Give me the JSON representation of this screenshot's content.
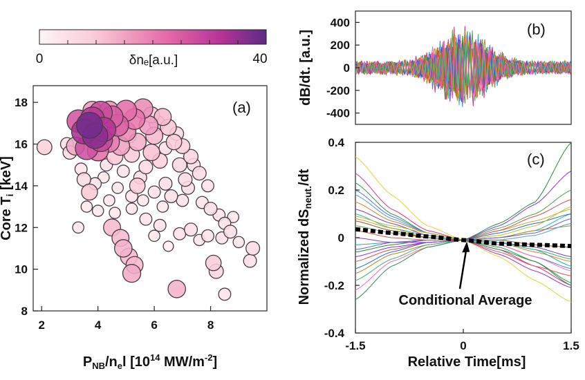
{
  "figure": {
    "colorbar": {
      "label": "δnₑ[a.u.]",
      "min_label": "0",
      "max_label": "40",
      "range": [
        0,
        40
      ],
      "colors": [
        "#fff5f6",
        "#f9c9d6",
        "#e66da8",
        "#b53496",
        "#5c2a86"
      ]
    }
  },
  "chart_data": [
    {
      "panel_label": "(a)",
      "type": "scatter",
      "xlabel": "P",
      "xlabel_sub": "NB",
      "xlabel_rest": "/n",
      "xlabel_sub2": "e",
      "xlabel_end": "l [10",
      "xlabel_sup": "14",
      "xlabel_tail": " MW/m",
      "xlabel_sup2": "-2",
      "xlabel_close": "]",
      "ylabel": "Core T",
      "ylabel_sub": "i",
      "ylabel_tail": " [keV]",
      "xlim": [
        1.7,
        10.0
      ],
      "ylim": [
        8.0,
        18.8
      ],
      "xticks": [
        "2",
        "4",
        "6",
        "8"
      ],
      "yticks": [
        "8",
        "10",
        "12",
        "14",
        "16",
        "18"
      ],
      "marker_size_and_color": "δn_e [a.u.]",
      "points": [
        {
          "x": 3.7,
          "y": 16.9,
          "c": 38
        },
        {
          "x": 3.9,
          "y": 16.4,
          "c": 36
        },
        {
          "x": 3.5,
          "y": 16.6,
          "c": 33
        },
        {
          "x": 4.2,
          "y": 16.7,
          "c": 32
        },
        {
          "x": 3.8,
          "y": 17.2,
          "c": 31
        },
        {
          "x": 4.1,
          "y": 17.5,
          "c": 28
        },
        {
          "x": 3.3,
          "y": 17.1,
          "c": 26
        },
        {
          "x": 4.5,
          "y": 17.3,
          "c": 25
        },
        {
          "x": 4.7,
          "y": 16.9,
          "c": 24
        },
        {
          "x": 3.6,
          "y": 15.8,
          "c": 27
        },
        {
          "x": 4.0,
          "y": 15.7,
          "c": 22
        },
        {
          "x": 5.0,
          "y": 17.6,
          "c": 22
        },
        {
          "x": 5.3,
          "y": 17.2,
          "c": 21
        },
        {
          "x": 5.6,
          "y": 17.7,
          "c": 18
        },
        {
          "x": 4.4,
          "y": 16.1,
          "c": 20
        },
        {
          "x": 5.0,
          "y": 16.6,
          "c": 18
        },
        {
          "x": 5.8,
          "y": 16.9,
          "c": 16
        },
        {
          "x": 4.8,
          "y": 15.9,
          "c": 15
        },
        {
          "x": 3.2,
          "y": 15.9,
          "c": 14
        },
        {
          "x": 5.4,
          "y": 16.1,
          "c": 13
        },
        {
          "x": 6.0,
          "y": 16.4,
          "c": 12
        },
        {
          "x": 6.3,
          "y": 17.3,
          "c": 12
        },
        {
          "x": 5.9,
          "y": 15.6,
          "c": 11
        },
        {
          "x": 6.5,
          "y": 16.8,
          "c": 10
        },
        {
          "x": 4.6,
          "y": 15.4,
          "c": 10
        },
        {
          "x": 6.7,
          "y": 16.1,
          "c": 9
        },
        {
          "x": 5.2,
          "y": 15.5,
          "c": 9
        },
        {
          "x": 6.2,
          "y": 15.2,
          "c": 8
        },
        {
          "x": 7.0,
          "y": 15.9,
          "c": 8
        },
        {
          "x": 6.9,
          "y": 15.0,
          "c": 7
        },
        {
          "x": 7.3,
          "y": 15.4,
          "c": 7
        },
        {
          "x": 7.6,
          "y": 14.6,
          "c": 6
        },
        {
          "x": 7.1,
          "y": 14.3,
          "c": 6
        },
        {
          "x": 5.7,
          "y": 14.9,
          "c": 6
        },
        {
          "x": 6.4,
          "y": 14.1,
          "c": 5
        },
        {
          "x": 5.5,
          "y": 14.4,
          "c": 5
        },
        {
          "x": 4.9,
          "y": 14.7,
          "c": 4
        },
        {
          "x": 4.3,
          "y": 15.0,
          "c": 4
        },
        {
          "x": 3.4,
          "y": 14.8,
          "c": 4
        },
        {
          "x": 3.0,
          "y": 15.6,
          "c": 6
        },
        {
          "x": 2.9,
          "y": 16.0,
          "c": 5
        },
        {
          "x": 2.1,
          "y": 15.85,
          "c": 8
        },
        {
          "x": 3.5,
          "y": 14.3,
          "c": 6
        },
        {
          "x": 3.7,
          "y": 13.7,
          "c": 10
        },
        {
          "x": 3.9,
          "y": 14.1,
          "c": 4
        },
        {
          "x": 4.2,
          "y": 14.4,
          "c": 3
        },
        {
          "x": 4.7,
          "y": 13.9,
          "c": 3
        },
        {
          "x": 5.2,
          "y": 13.5,
          "c": 4
        },
        {
          "x": 5.4,
          "y": 14.0,
          "c": 9
        },
        {
          "x": 6.0,
          "y": 13.7,
          "c": 4
        },
        {
          "x": 6.6,
          "y": 13.5,
          "c": 5
        },
        {
          "x": 7.2,
          "y": 13.9,
          "c": 5
        },
        {
          "x": 7.7,
          "y": 13.2,
          "c": 4
        },
        {
          "x": 8.0,
          "y": 12.9,
          "c": 5
        },
        {
          "x": 8.3,
          "y": 12.6,
          "c": 4
        },
        {
          "x": 8.5,
          "y": 12.2,
          "c": 4
        },
        {
          "x": 8.7,
          "y": 11.8,
          "c": 5
        },
        {
          "x": 8.4,
          "y": 11.5,
          "c": 4
        },
        {
          "x": 7.9,
          "y": 11.6,
          "c": 4
        },
        {
          "x": 7.3,
          "y": 11.9,
          "c": 5
        },
        {
          "x": 6.9,
          "y": 11.7,
          "c": 4
        },
        {
          "x": 6.2,
          "y": 12.1,
          "c": 4
        },
        {
          "x": 5.7,
          "y": 12.4,
          "c": 4
        },
        {
          "x": 5.2,
          "y": 12.9,
          "c": 3
        },
        {
          "x": 4.6,
          "y": 12.7,
          "c": 3
        },
        {
          "x": 3.3,
          "y": 12.0,
          "c": 3
        },
        {
          "x": 4.0,
          "y": 12.8,
          "c": 3
        },
        {
          "x": 4.5,
          "y": 12.0,
          "c": 12
        },
        {
          "x": 4.8,
          "y": 11.5,
          "c": 12
        },
        {
          "x": 4.9,
          "y": 11.0,
          "c": 13
        },
        {
          "x": 5.1,
          "y": 10.6,
          "c": 12
        },
        {
          "x": 5.3,
          "y": 10.2,
          "c": 12
        },
        {
          "x": 5.2,
          "y": 9.8,
          "c": 14
        },
        {
          "x": 6.8,
          "y": 9.05,
          "c": 13
        },
        {
          "x": 8.1,
          "y": 10.3,
          "c": 9
        },
        {
          "x": 8.2,
          "y": 9.9,
          "c": 7
        },
        {
          "x": 8.5,
          "y": 8.8,
          "c": 4
        },
        {
          "x": 9.5,
          "y": 11.0,
          "c": 6
        },
        {
          "x": 9.4,
          "y": 10.4,
          "c": 5
        },
        {
          "x": 9.0,
          "y": 11.3,
          "c": 3
        },
        {
          "x": 6.5,
          "y": 11.1,
          "c": 2
        },
        {
          "x": 6.0,
          "y": 11.6,
          "c": 3
        },
        {
          "x": 7.6,
          "y": 11.4,
          "c": 3
        },
        {
          "x": 8.8,
          "y": 12.5,
          "c": 3
        },
        {
          "x": 6.4,
          "y": 15.8,
          "c": 5
        },
        {
          "x": 5.1,
          "y": 16.4,
          "c": 8
        },
        {
          "x": 4.1,
          "y": 16.2,
          "c": 29
        },
        {
          "x": 3.8,
          "y": 17.6,
          "c": 16
        },
        {
          "x": 4.4,
          "y": 17.6,
          "c": 17
        },
        {
          "x": 5.9,
          "y": 17.4,
          "c": 10
        },
        {
          "x": 6.1,
          "y": 17.0,
          "c": 9
        },
        {
          "x": 6.8,
          "y": 16.5,
          "c": 6
        },
        {
          "x": 7.4,
          "y": 15.0,
          "c": 5
        },
        {
          "x": 7.9,
          "y": 14.0,
          "c": 4
        },
        {
          "x": 7.0,
          "y": 13.3,
          "c": 4
        },
        {
          "x": 6.3,
          "y": 13.0,
          "c": 3
        },
        {
          "x": 5.6,
          "y": 13.3,
          "c": 3
        },
        {
          "x": 4.4,
          "y": 13.3,
          "c": 3
        },
        {
          "x": 3.6,
          "y": 13.0,
          "c": 3
        }
      ]
    },
    {
      "panel_label": "(b)",
      "type": "line",
      "ylabel": "dB/dt. [a.u.]",
      "xlim": [
        -1.5,
        1.5
      ],
      "ylim": [
        -500,
        500
      ],
      "yticks": [
        "400",
        "200",
        "0",
        "-200",
        "-400"
      ],
      "series_count": 16,
      "envelope": {
        "center": 0.0,
        "peak_amplitude": 420,
        "baseline_amplitude": 70
      }
    },
    {
      "panel_label": "(c)",
      "type": "line",
      "ylabel": "Normalized dS",
      "ylabel_sub": "neut.",
      "ylabel_tail": "/dt",
      "xlabel": "Relative Time[ms]",
      "xlim": [
        -1.5,
        1.5
      ],
      "ylim": [
        -0.4,
        0.4
      ],
      "xticks": [
        "-1.5",
        "0",
        "1.5"
      ],
      "yticks": [
        "0.4",
        "0.2",
        "0",
        "-0.2",
        "-0.4"
      ],
      "annotation": "Conditional Average",
      "annotation_point": {
        "x": 0.05,
        "y": -0.01
      },
      "conditional_average": {
        "x": [
          -1.5,
          -1.0,
          -0.5,
          0.0,
          0.5,
          1.0,
          1.5
        ],
        "y": [
          0.035,
          0.02,
          0.005,
          -0.01,
          -0.025,
          -0.03,
          -0.035
        ]
      },
      "series": [
        {
          "y": [
            0.34,
            0.18,
            0.05,
            -0.01,
            -0.08,
            -0.18,
            -0.27
          ]
        },
        {
          "y": [
            0.27,
            0.12,
            0.03,
            -0.01,
            -0.05,
            -0.12,
            -0.2
          ]
        },
        {
          "y": [
            0.23,
            0.1,
            0.02,
            -0.01,
            -0.04,
            -0.1,
            -0.19
          ]
        },
        {
          "y": [
            0.2,
            0.09,
            0.02,
            -0.01,
            -0.03,
            -0.08,
            -0.13
          ]
        },
        {
          "y": [
            0.15,
            0.07,
            0.02,
            -0.01,
            -0.02,
            -0.06,
            -0.1
          ]
        },
        {
          "y": [
            0.12,
            0.06,
            0.01,
            -0.01,
            -0.02,
            -0.04,
            -0.08
          ]
        },
        {
          "y": [
            0.1,
            0.04,
            0.01,
            -0.01,
            0.0,
            0.03,
            0.1
          ]
        },
        {
          "y": [
            0.08,
            0.04,
            0.0,
            -0.01,
            0.03,
            0.07,
            0.12
          ]
        },
        {
          "y": [
            0.05,
            0.02,
            0.0,
            -0.01,
            0.04,
            0.1,
            0.2
          ]
        },
        {
          "y": [
            -0.06,
            -0.03,
            -0.01,
            -0.01,
            0.06,
            0.15,
            0.4
          ]
        },
        {
          "y": [
            -0.08,
            -0.04,
            -0.02,
            -0.01,
            0.05,
            0.14,
            0.28
          ]
        },
        {
          "y": [
            -0.1,
            -0.05,
            -0.02,
            -0.01,
            0.03,
            0.09,
            0.16
          ]
        },
        {
          "y": [
            -0.13,
            -0.06,
            -0.02,
            -0.01,
            0.02,
            0.06,
            0.1
          ]
        },
        {
          "y": [
            -0.15,
            -0.07,
            -0.03,
            -0.01,
            0.0,
            0.03,
            0.05
          ]
        },
        {
          "y": [
            -0.18,
            -0.09,
            -0.03,
            -0.01,
            -0.02,
            -0.05,
            -0.09
          ]
        },
        {
          "y": [
            -0.22,
            -0.1,
            -0.04,
            -0.01,
            -0.03,
            -0.08,
            -0.14
          ]
        },
        {
          "y": [
            -0.26,
            -0.12,
            -0.04,
            -0.01,
            -0.05,
            -0.1,
            -0.2
          ]
        },
        {
          "y": [
            0.0,
            -0.02,
            -0.02,
            -0.01,
            -0.07,
            -0.14,
            -0.21
          ]
        },
        {
          "y": [
            0.03,
            0.0,
            -0.01,
            -0.01,
            -0.06,
            -0.12,
            -0.16
          ]
        },
        {
          "y": [
            0.18,
            0.08,
            0.02,
            -0.01,
            -0.01,
            0.01,
            0.06
          ]
        },
        {
          "y": [
            0.09,
            0.05,
            0.02,
            -0.01,
            0.01,
            0.05,
            0.13
          ]
        },
        {
          "y": [
            0.07,
            0.03,
            0.0,
            -0.01,
            -0.01,
            -0.03,
            -0.04
          ]
        },
        {
          "y": [
            -0.03,
            -0.02,
            -0.01,
            -0.01,
            -0.02,
            -0.05,
            -0.12
          ]
        },
        {
          "y": [
            -0.05,
            -0.02,
            -0.01,
            -0.01,
            0.0,
            0.02,
            0.08
          ]
        }
      ],
      "series_colors": [
        "#e8d327",
        "#d62f8f",
        "#2a9d3a",
        "#4f79d8",
        "#e37d1c",
        "#7b3fb5",
        "#22b5c8",
        "#c7a82a",
        "#52a447",
        "#1b8f2e",
        "#8a2be2",
        "#d94b4b",
        "#1f6fd1",
        "#b8860b",
        "#3cb371",
        "#ff69b4",
        "#2e8b57",
        "#9932cc",
        "#e05050",
        "#4aa0e0",
        "#c0c020",
        "#a0522d",
        "#20b2aa",
        "#6a5acd"
      ]
    }
  ]
}
